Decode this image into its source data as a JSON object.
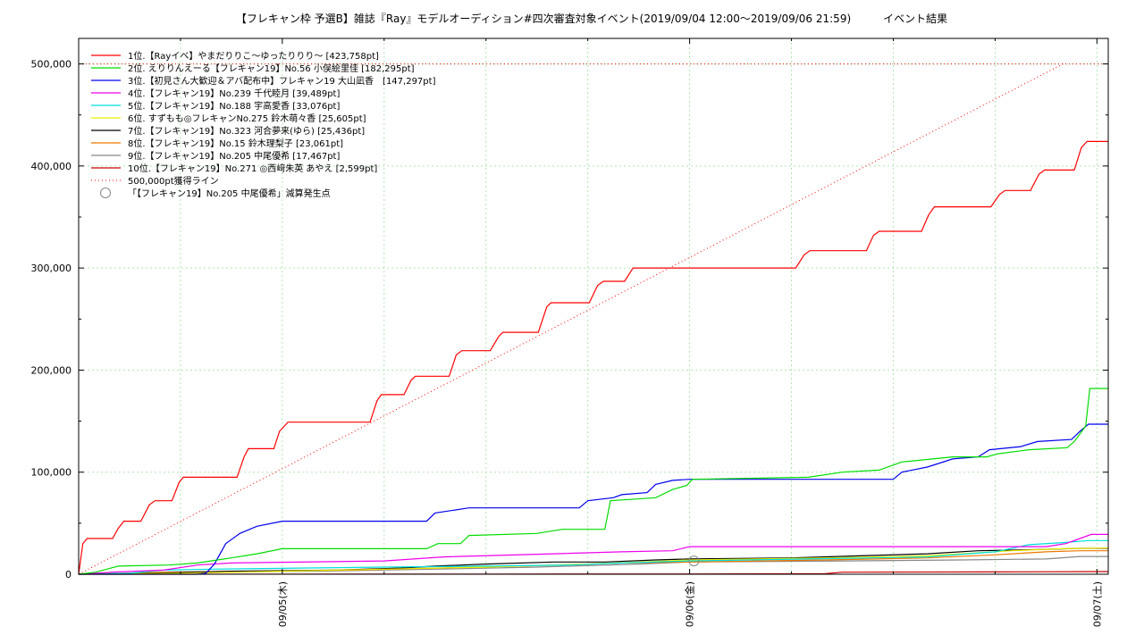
{
  "chart_data": {
    "type": "line",
    "title": "【フレキャン枠 予選B】雑誌『Ray』モデルオーディション#四次審査対象イベント(2019/09/04 12:00〜2019/09/06 21:59)　　　イベント結果",
    "x_start": "2019/09/04 12:00",
    "x_end": "2019/09/07 00:40",
    "x_ticks": [
      {
        "t": "2019/09/05 00:00",
        "label": "09/05(木)"
      },
      {
        "t": "2019/09/06 00:00",
        "label": "09/06(金)"
      },
      {
        "t": "2019/09/07 00:00",
        "label": "09/07(土)"
      }
    ],
    "ylim": [
      0,
      525000
    ],
    "y_ticks": [
      0,
      100000,
      200000,
      300000,
      400000,
      500000
    ],
    "y_tick_labels": [
      "0",
      "100,000",
      "200,000",
      "300,000",
      "400,000",
      "500,000"
    ],
    "grid": true,
    "legend_position": "top-left",
    "series": [
      {
        "name": "1位.【Rayイベ】やまだりりこ〜ゆったりりり〜 [423,758pt]",
        "color": "#ff0000",
        "points": [
          [
            "2019/09/04 12:00",
            0
          ],
          [
            "2019/09/04 12:15",
            30000
          ],
          [
            "2019/09/04 12:30",
            35000
          ],
          [
            "2019/09/04 14:00",
            35000
          ],
          [
            "2019/09/04 14:20",
            45000
          ],
          [
            "2019/09/04 14:40",
            52000
          ],
          [
            "2019/09/04 15:40",
            52000
          ],
          [
            "2019/09/04 16:10",
            68000
          ],
          [
            "2019/09/04 16:30",
            72000
          ],
          [
            "2019/09/04 17:30",
            72000
          ],
          [
            "2019/09/04 17:55",
            90000
          ],
          [
            "2019/09/04 18:10",
            95000
          ],
          [
            "2019/09/04 21:20",
            95000
          ],
          [
            "2019/09/04 21:45",
            115000
          ],
          [
            "2019/09/04 22:00",
            123000
          ],
          [
            "2019/09/04 23:30",
            123000
          ],
          [
            "2019/09/04 23:50",
            140000
          ],
          [
            "2019/09/05 00:20",
            149000
          ],
          [
            "2019/09/05 05:10",
            149000
          ],
          [
            "2019/09/05 05:35",
            170000
          ],
          [
            "2019/09/05 05:50",
            176000
          ],
          [
            "2019/09/05 07:10",
            176000
          ],
          [
            "2019/09/05 07:35",
            190000
          ],
          [
            "2019/09/05 07:50",
            194000
          ],
          [
            "2019/09/05 09:50",
            194000
          ],
          [
            "2019/09/05 10:15",
            215000
          ],
          [
            "2019/09/05 10:35",
            219000
          ],
          [
            "2019/09/05 12:15",
            219000
          ],
          [
            "2019/09/05 12:45",
            233000
          ],
          [
            "2019/09/05 13:00",
            237000
          ],
          [
            "2019/09/05 15:05",
            237000
          ],
          [
            "2019/09/05 15:35",
            262000
          ],
          [
            "2019/09/05 15:50",
            266000
          ],
          [
            "2019/09/05 18:05",
            266000
          ],
          [
            "2019/09/05 18:35",
            283000
          ],
          [
            "2019/09/05 18:55",
            287000
          ],
          [
            "2019/09/05 20:10",
            287000
          ],
          [
            "2019/09/05 20:40",
            300000
          ],
          [
            "2019/09/06 06:15",
            300000
          ],
          [
            "2019/09/06 06:45",
            313000
          ],
          [
            "2019/09/06 07:05",
            317000
          ],
          [
            "2019/09/06 10:25",
            317000
          ],
          [
            "2019/09/06 10:50",
            332000
          ],
          [
            "2019/09/06 11:10",
            336000
          ],
          [
            "2019/09/06 13:40",
            336000
          ],
          [
            "2019/09/06 14:05",
            352000
          ],
          [
            "2019/09/06 14:25",
            360000
          ],
          [
            "2019/09/06 17:45",
            360000
          ],
          [
            "2019/09/06 18:15",
            372000
          ],
          [
            "2019/09/06 18:35",
            376000
          ],
          [
            "2019/09/06 20:05",
            376000
          ],
          [
            "2019/09/06 20:35",
            392000
          ],
          [
            "2019/09/06 20:55",
            396000
          ],
          [
            "2019/09/06 22:40",
            396000
          ],
          [
            "2019/09/06 23:05",
            418000
          ],
          [
            "2019/09/06 23:25",
            424000
          ],
          [
            "2019/09/07 00:40",
            424000
          ]
        ]
      },
      {
        "name": "2位. えりりんえーる【フレキャン19】No.56 小俣絵里佳 [182,295pt]",
        "color": "#00dd00",
        "points": [
          [
            "2019/09/04 12:00",
            0
          ],
          [
            "2019/09/04 13:00",
            2000
          ],
          [
            "2019/09/04 14:20",
            8000
          ],
          [
            "2019/09/04 17:20",
            9000
          ],
          [
            "2019/09/04 19:00",
            11000
          ],
          [
            "2019/09/04 21:00",
            16000
          ],
          [
            "2019/09/04 22:30",
            20000
          ],
          [
            "2019/09/05 00:00",
            25000
          ],
          [
            "2019/09/05 08:30",
            25000
          ],
          [
            "2019/09/05 09:10",
            30000
          ],
          [
            "2019/09/05 10:30",
            30000
          ],
          [
            "2019/09/05 11:00",
            38000
          ],
          [
            "2019/09/05 15:00",
            40000
          ],
          [
            "2019/09/05 16:30",
            44000
          ],
          [
            "2019/09/05 19:00",
            44000
          ],
          [
            "2019/09/05 19:20",
            72000
          ],
          [
            "2019/09/05 22:00",
            75000
          ],
          [
            "2019/09/05 23:00",
            83000
          ],
          [
            "2019/09/05 23:50",
            87000
          ],
          [
            "2019/09/06 00:10",
            93000
          ],
          [
            "2019/09/06 07:00",
            95000
          ],
          [
            "2019/09/06 09:00",
            100000
          ],
          [
            "2019/09/06 11:10",
            102000
          ],
          [
            "2019/09/06 12:30",
            110000
          ],
          [
            "2019/09/06 15:30",
            115000
          ],
          [
            "2019/09/06 17:30",
            115000
          ],
          [
            "2019/09/06 18:10",
            118000
          ],
          [
            "2019/09/06 20:00",
            122000
          ],
          [
            "2019/09/06 22:15",
            124000
          ],
          [
            "2019/09/06 22:40",
            130000
          ],
          [
            "2019/09/06 23:20",
            145000
          ],
          [
            "2019/09/06 23:35",
            182000
          ],
          [
            "2019/09/07 00:40",
            182000
          ]
        ]
      },
      {
        "name": "3位.【初見さん大歓迎＆アバ配布中】フレキャン19 大山凪香　[147,297pt]",
        "color": "#0000ee",
        "points": [
          [
            "2019/09/04 12:00",
            0
          ],
          [
            "2019/09/04 14:00",
            0
          ],
          [
            "2019/09/04 19:00",
            0
          ],
          [
            "2019/09/04 19:30",
            1000
          ],
          [
            "2019/09/04 20:00",
            10000
          ],
          [
            "2019/09/04 20:40",
            30000
          ],
          [
            "2019/09/04 21:30",
            40000
          ],
          [
            "2019/09/04 22:30",
            47000
          ],
          [
            "2019/09/05 00:00",
            52000
          ],
          [
            "2019/09/05 08:30",
            52000
          ],
          [
            "2019/09/05 09:00",
            60000
          ],
          [
            "2019/09/05 11:00",
            65000
          ],
          [
            "2019/09/05 17:30",
            65000
          ],
          [
            "2019/09/05 18:00",
            72000
          ],
          [
            "2019/09/05 19:30",
            75000
          ],
          [
            "2019/09/05 20:00",
            78000
          ],
          [
            "2019/09/05 21:30",
            80000
          ],
          [
            "2019/09/05 22:00",
            88000
          ],
          [
            "2019/09/05 23:00",
            92000
          ],
          [
            "2019/09/06 00:00",
            93000
          ],
          [
            "2019/09/06 12:00",
            93000
          ],
          [
            "2019/09/06 12:30",
            100000
          ],
          [
            "2019/09/06 14:00",
            105000
          ],
          [
            "2019/09/06 15:30",
            113000
          ],
          [
            "2019/09/06 17:00",
            115000
          ],
          [
            "2019/09/06 17:40",
            122000
          ],
          [
            "2019/09/06 19:30",
            125000
          ],
          [
            "2019/09/06 20:30",
            130000
          ],
          [
            "2019/09/06 22:30",
            132000
          ],
          [
            "2019/09/06 23:00",
            140000
          ],
          [
            "2019/09/06 23:30",
            147000
          ],
          [
            "2019/09/07 00:40",
            147000
          ]
        ]
      },
      {
        "name": "4位.【フレキャン19】No.239 千代睦月 [39,489pt]",
        "color": "#ee00ee",
        "points": [
          [
            "2019/09/04 12:00",
            0
          ],
          [
            "2019/09/04 14:00",
            2000
          ],
          [
            "2019/09/04 17:00",
            4000
          ],
          [
            "2019/09/04 19:00",
            9000
          ],
          [
            "2019/09/04 21:00",
            11000
          ],
          [
            "2019/09/05 06:00",
            13000
          ],
          [
            "2019/09/05 09:30",
            17000
          ],
          [
            "2019/09/05 16:00",
            20000
          ],
          [
            "2019/09/05 20:00",
            22000
          ],
          [
            "2019/09/05 23:00",
            23000
          ],
          [
            "2019/09/06 00:00",
            27000
          ],
          [
            "2019/09/06 21:00",
            27000
          ],
          [
            "2019/09/06 22:10",
            30000
          ],
          [
            "2019/09/06 23:00",
            35000
          ],
          [
            "2019/09/06 23:40",
            39000
          ],
          [
            "2019/09/07 00:40",
            39000
          ]
        ]
      },
      {
        "name": "5位.【フレキャン19】No.188 宇高愛香 [33,076pt]",
        "color": "#00dddd",
        "points": [
          [
            "2019/09/04 12:00",
            0
          ],
          [
            "2019/09/04 15:00",
            1000
          ],
          [
            "2019/09/04 17:00",
            4000
          ],
          [
            "2019/09/04 20:00",
            5000
          ],
          [
            "2019/09/05 01:00",
            6000
          ],
          [
            "2019/09/05 06:00",
            7000
          ],
          [
            "2019/09/05 12:00",
            8000
          ],
          [
            "2019/09/05 17:00",
            9000
          ],
          [
            "2019/09/05 20:00",
            11000
          ],
          [
            "2019/09/06 00:00",
            13000
          ],
          [
            "2019/09/06 07:00",
            15000
          ],
          [
            "2019/09/06 14:00",
            17000
          ],
          [
            "2019/09/06 18:00",
            22000
          ],
          [
            "2019/09/06 20:00",
            29000
          ],
          [
            "2019/09/06 22:00",
            31000
          ],
          [
            "2019/09/06 23:30",
            33000
          ],
          [
            "2019/09/07 00:40",
            33000
          ]
        ]
      },
      {
        "name": "6位. すずもも◎フレキャンNo.275 鈴木萌々香 [25,605pt]",
        "color": "#eeee00",
        "points": [
          [
            "2019/09/04 12:00",
            0
          ],
          [
            "2019/09/04 18:00",
            1000
          ],
          [
            "2019/09/05 00:00",
            3000
          ],
          [
            "2019/09/05 06:00",
            5000
          ],
          [
            "2019/09/05 12:00",
            7000
          ],
          [
            "2019/09/05 18:00",
            10000
          ],
          [
            "2019/09/06 00:00",
            14000
          ],
          [
            "2019/09/06 08:00",
            16000
          ],
          [
            "2019/09/06 14:00",
            18000
          ],
          [
            "2019/09/06 19:00",
            23000
          ],
          [
            "2019/09/06 22:00",
            25000
          ],
          [
            "2019/09/07 00:40",
            25600
          ]
        ]
      },
      {
        "name": "7位.【フレキャン19】No.323 河合夢来(ゆら) [25,436pt]",
        "color": "#000000",
        "points": [
          [
            "2019/09/04 12:00",
            0
          ],
          [
            "2019/09/04 16:00",
            1000
          ],
          [
            "2019/09/04 21:00",
            3000
          ],
          [
            "2019/09/05 03:00",
            4000
          ],
          [
            "2019/09/05 07:00",
            6000
          ],
          [
            "2019/09/05 09:00",
            8000
          ],
          [
            "2019/09/05 12:00",
            10000
          ],
          [
            "2019/09/05 16:00",
            12000
          ],
          [
            "2019/09/05 19:00",
            12000
          ],
          [
            "2019/09/05 22:00",
            14000
          ],
          [
            "2019/09/06 00:00",
            15000
          ],
          [
            "2019/09/06 06:00",
            16000
          ],
          [
            "2019/09/06 10:00",
            18000
          ],
          [
            "2019/09/06 14:00",
            20000
          ],
          [
            "2019/09/06 17:00",
            23000
          ],
          [
            "2019/09/06 20:00",
            24000
          ],
          [
            "2019/09/06 23:00",
            25400
          ],
          [
            "2019/09/07 00:40",
            25400
          ]
        ]
      },
      {
        "name": "8位.【フレキャン19】No.15 鈴木理梨子 [23,061pt]",
        "color": "#ee7700",
        "points": [
          [
            "2019/09/04 12:00",
            0
          ],
          [
            "2019/09/04 17:00",
            2000
          ],
          [
            "2019/09/04 22:00",
            3000
          ],
          [
            "2019/09/05 04:00",
            4000
          ],
          [
            "2019/09/05 09:00",
            6000
          ],
          [
            "2019/09/05 14:00",
            8000
          ],
          [
            "2019/09/05 20:00",
            11000
          ],
          [
            "2019/09/06 00:00",
            12000
          ],
          [
            "2019/09/06 08:00",
            14000
          ],
          [
            "2019/09/06 14:00",
            16000
          ],
          [
            "2019/09/06 18:00",
            19000
          ],
          [
            "2019/09/06 21:00",
            22000
          ],
          [
            "2019/09/06 23:00",
            23000
          ],
          [
            "2019/09/07 00:40",
            23000
          ]
        ]
      },
      {
        "name": "9位.【フレキャン19】No.205 中尾優希 [17,467pt]",
        "color": "#888888",
        "points": [
          [
            "2019/09/04 12:00",
            0
          ],
          [
            "2019/09/04 20:00",
            2000
          ],
          [
            "2019/09/05 02:00",
            3000
          ],
          [
            "2019/09/05 09:00",
            5000
          ],
          [
            "2019/09/05 15:00",
            7000
          ],
          [
            "2019/09/05 21:00",
            10000
          ],
          [
            "2019/09/06 00:00",
            12000
          ],
          [
            "2019/09/06 09:00",
            13000
          ],
          [
            "2019/09/06 16:00",
            14000
          ],
          [
            "2019/09/06 21:00",
            15000
          ],
          [
            "2019/09/06 23:00",
            17400
          ],
          [
            "2019/09/07 00:40",
            17400
          ]
        ]
      },
      {
        "name": "10位.【フレキャン19】No.271 ◎西﨑朱英 あやえ [2,599pt]",
        "color": "#cc0000",
        "points": [
          [
            "2019/09/04 12:00",
            0
          ],
          [
            "2019/09/05 12:00",
            200
          ],
          [
            "2019/09/06 00:00",
            300
          ],
          [
            "2019/09/06 08:00",
            500
          ],
          [
            "2019/09/06 09:00",
            2000
          ],
          [
            "2019/09/06 18:00",
            2300
          ],
          [
            "2019/09/07 00:40",
            2600
          ]
        ]
      }
    ],
    "target_line": {
      "name": "500,000pt獲得ライン",
      "color": "#ff0000",
      "value": 500000,
      "end": "2019/09/06 22:00"
    },
    "marker": {
      "name": "「【フレキャン19】No.205 中尾優希」減算発生点",
      "t": "2019/09/06 00:15",
      "value": 13000
    }
  }
}
